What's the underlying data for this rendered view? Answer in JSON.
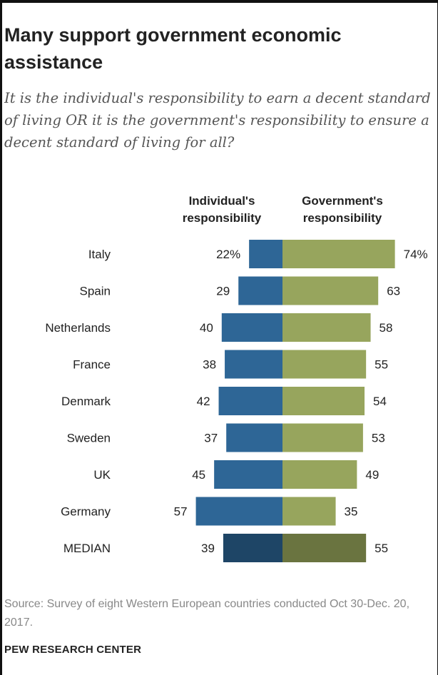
{
  "title": "Many support government economic assistance",
  "subtitle": "It is the individual's responsibility to earn a decent standard of living OR it is the government's responsibility to ensure a decent standard of living for all?",
  "columns": {
    "individual": "Individual's responsibility",
    "government": "Government's responsibility"
  },
  "colors": {
    "individual": "#2e6696",
    "government": "#97a55d",
    "individual_median": "#1e4566",
    "government_median": "#6a7440"
  },
  "chart_data": {
    "type": "bar",
    "orientation": "horizontal-diverging",
    "categories": [
      "Italy",
      "Spain",
      "Netherlands",
      "France",
      "Denmark",
      "Sweden",
      "UK",
      "Germany",
      "MEDIAN"
    ],
    "series": [
      {
        "name": "Individual's responsibility",
        "values": [
          22,
          29,
          40,
          38,
          42,
          37,
          45,
          57,
          39
        ]
      },
      {
        "name": "Government's responsibility",
        "values": [
          74,
          63,
          58,
          55,
          54,
          53,
          49,
          35,
          55
        ]
      }
    ],
    "value_labels": {
      "individual": [
        "22%",
        "29",
        "40",
        "38",
        "42",
        "37",
        "45",
        "57",
        "39"
      ],
      "government": [
        "74%",
        "63",
        "58",
        "55",
        "54",
        "53",
        "49",
        "35",
        "55"
      ]
    },
    "unit": "%",
    "xlim": [
      0,
      100
    ]
  },
  "source": "Source: Survey of eight Western European countries conducted Oct 30-Dec. 20, 2017.",
  "footer": "PEW RESEARCH CENTER"
}
